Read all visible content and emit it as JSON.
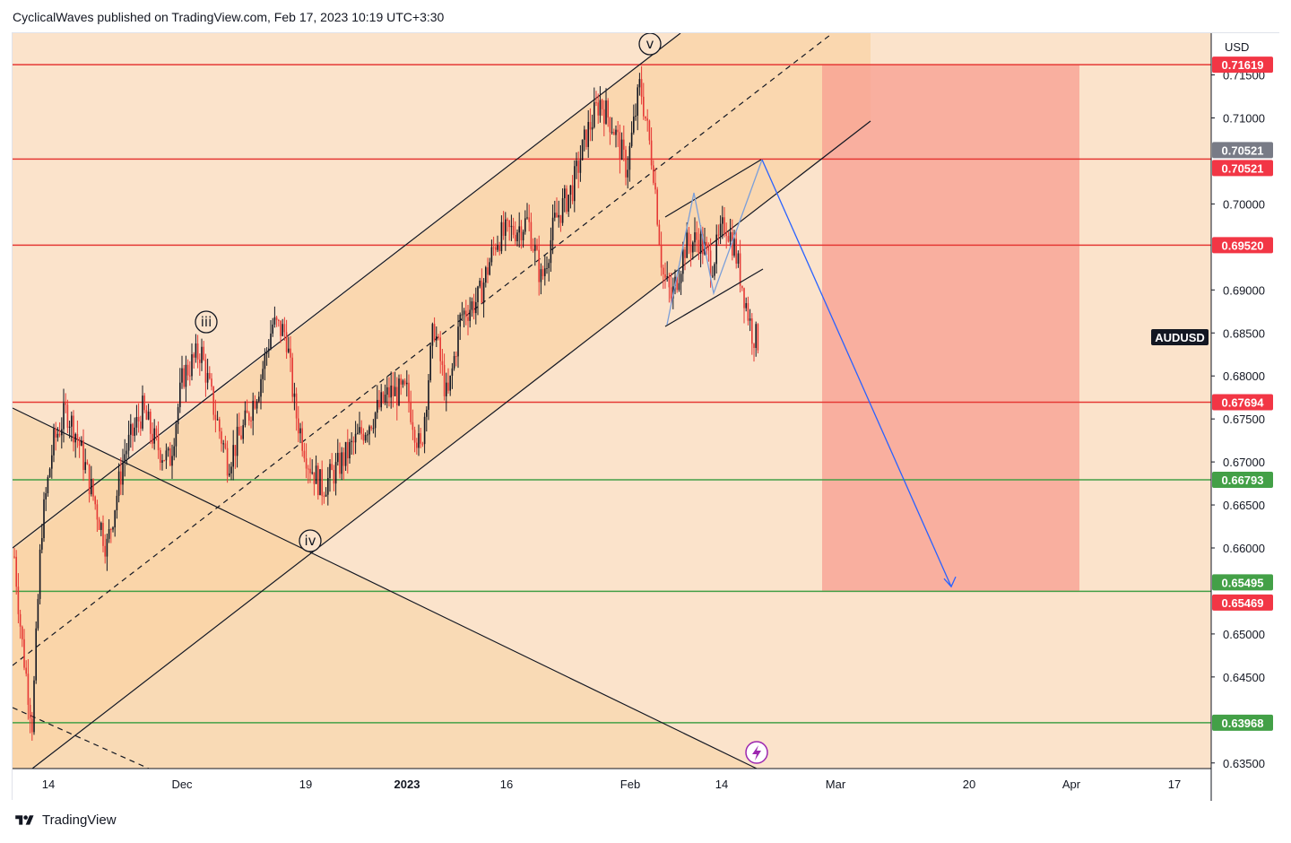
{
  "header": {
    "publisher_line": "CyclicalWaves published on TradingView.com, Feb 17, 2023 10:19 UTC+3:30"
  },
  "footer": {
    "brand": "TradingView"
  },
  "chart_data": {
    "type": "candlestick",
    "symbol": "AUDUSD",
    "currency": "USD",
    "y_range": [
      0.633,
      0.7185
    ],
    "y_ticks": [
      "0.71500",
      "0.71000",
      "0.70000",
      "0.69000",
      "0.68500",
      "0.68000",
      "0.67500",
      "0.67000",
      "0.66500",
      "0.66000",
      "0.65000",
      "0.64500",
      "0.63500"
    ],
    "x_ticks": [
      "14",
      "Dec",
      "19",
      "2023",
      "16",
      "Feb",
      "14",
      "Mar",
      "20",
      "Apr",
      "17"
    ],
    "horizontal_levels": [
      {
        "value": 0.71619,
        "label": "0.71619",
        "color": "#e53935"
      },
      {
        "value": 0.70521,
        "label": "0.70521",
        "color": "#e53935"
      },
      {
        "value": 0.6952,
        "label": "0.69520",
        "color": "#e53935"
      },
      {
        "value": 0.67694,
        "label": "0.67694",
        "color": "#e53935"
      },
      {
        "value": 0.66793,
        "label": "0.66793",
        "color": "#43a047"
      },
      {
        "value": 0.65495,
        "label": "0.65495",
        "color": "#43a047"
      },
      {
        "value": 0.63968,
        "label": "0.63968",
        "color": "#43a047"
      }
    ],
    "price_badges": [
      {
        "value": 0.71619,
        "label": "0.71619",
        "color": "#f23645"
      },
      {
        "value": 0.70521,
        "label": "0.70521",
        "color": "#787b86",
        "offset": -1
      },
      {
        "value": 0.70521,
        "label": "0.70521",
        "color": "#f23645",
        "offset": 1
      },
      {
        "value": 0.6952,
        "label": "0.69520",
        "color": "#f23645"
      },
      {
        "value": 0.67694,
        "label": "0.67694",
        "color": "#f23645"
      },
      {
        "value": 0.66793,
        "label": "0.66793",
        "color": "#43a047"
      },
      {
        "value": 0.65495,
        "label": "0.65495",
        "color": "#43a047",
        "offset": -1
      },
      {
        "value": 0.65469,
        "label": "0.65469",
        "color": "#f23645",
        "offset": 1
      },
      {
        "value": 0.63968,
        "label": "0.63968",
        "color": "#43a047"
      }
    ],
    "symbol_badge": {
      "value": 0.6845,
      "label": "AUDUSD"
    },
    "wave_labels": [
      "iii",
      "iv",
      "v"
    ],
    "short_position": {
      "entry": 0.7162,
      "target": 0.65495,
      "color": "#f8a092"
    },
    "projection_target": 0.6555,
    "colors": {
      "background": "#fbe3cb",
      "channel_fill": "#f9d3a6",
      "candle_up": "#131722",
      "candle_down": "#e53935",
      "projection": "#2962ff",
      "trendline": "#131722"
    }
  }
}
